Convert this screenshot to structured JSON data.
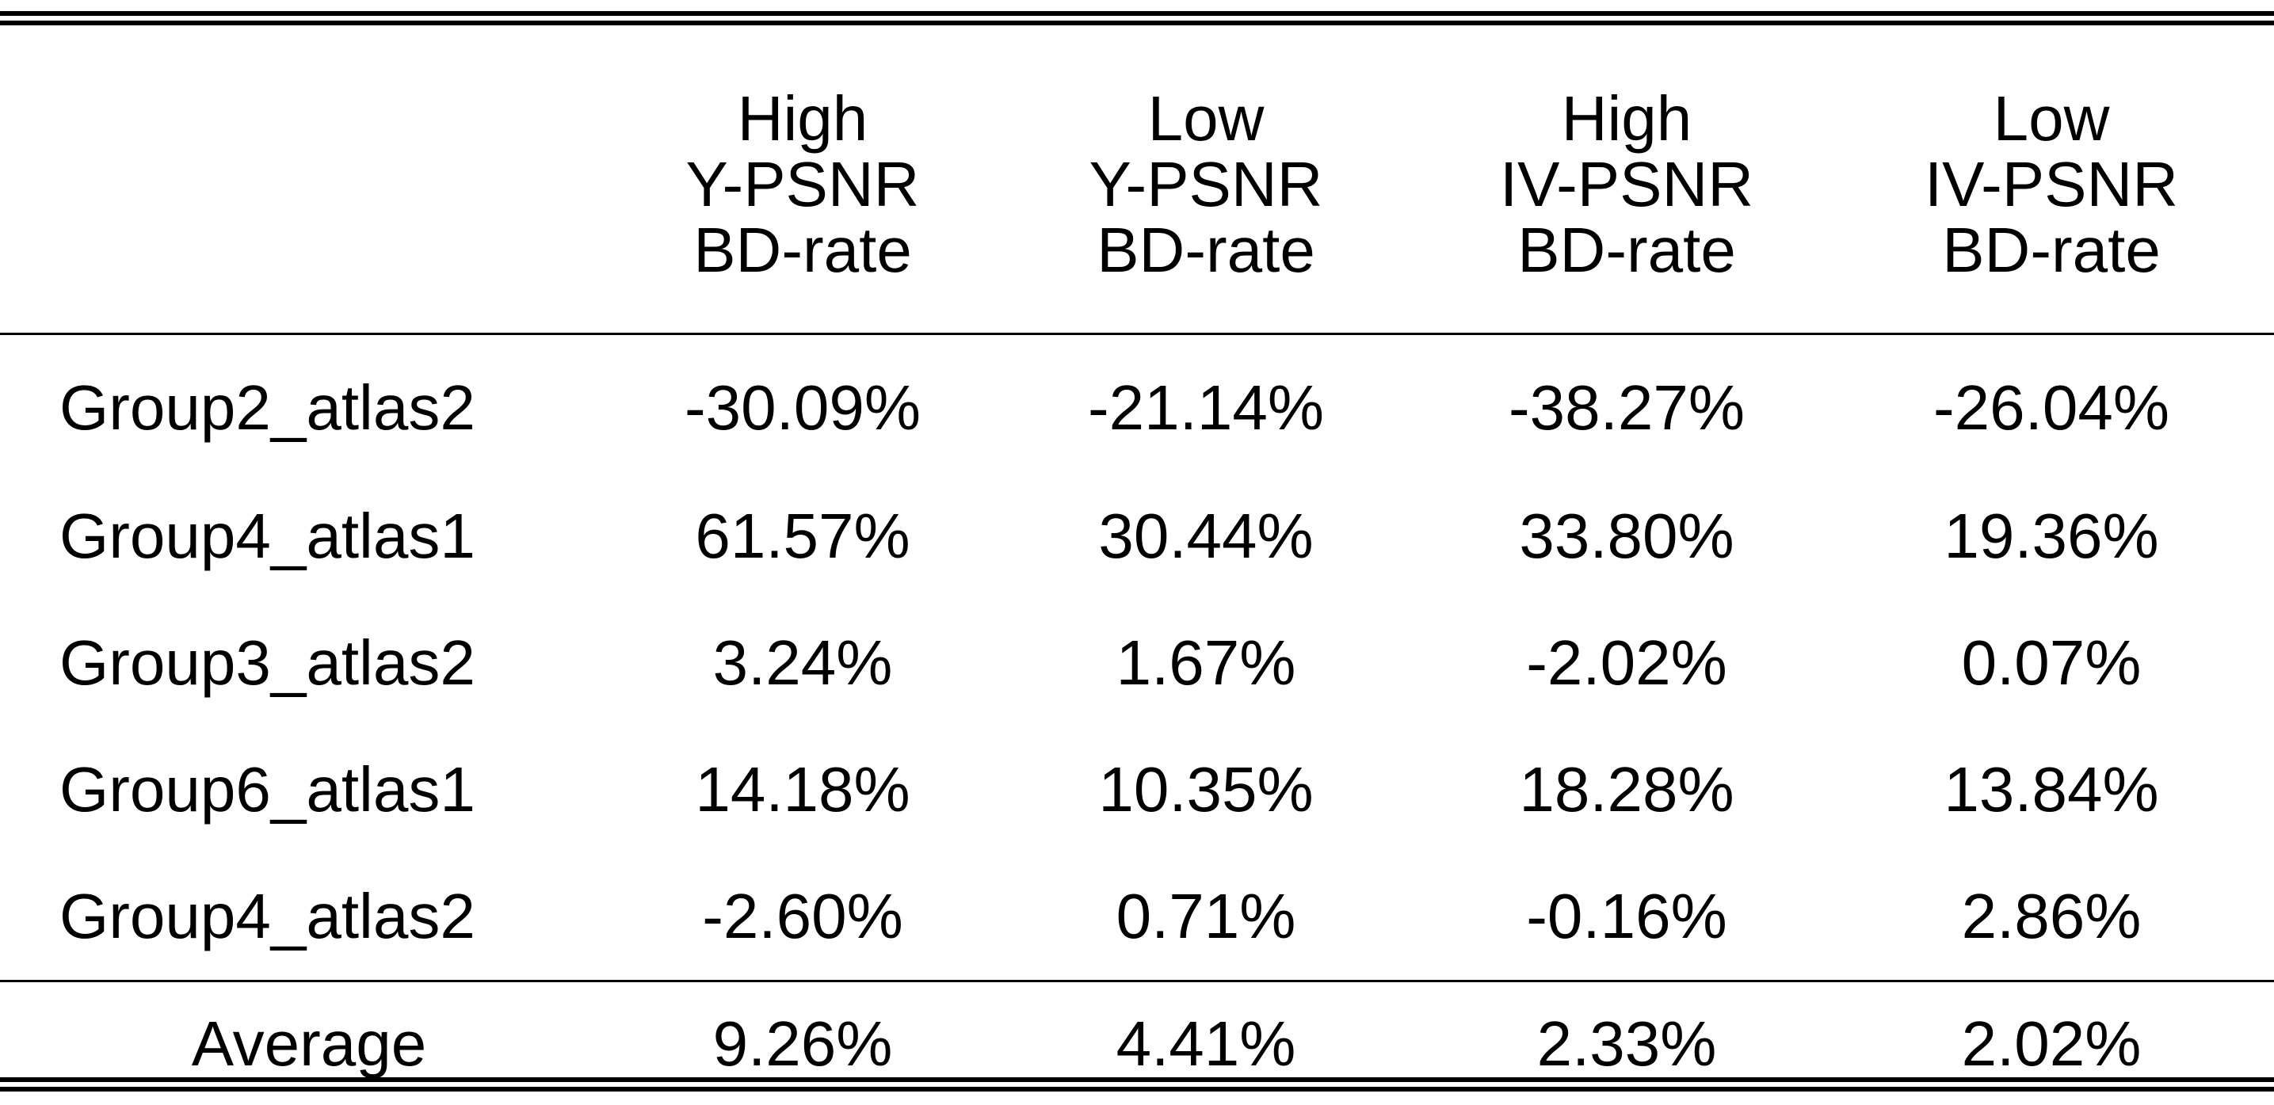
{
  "table": {
    "header": {
      "corner": "",
      "columns": [
        {
          "lines": [
            "High",
            "Y-PSNR",
            "BD-rate"
          ]
        },
        {
          "lines": [
            "Low",
            "Y-PSNR",
            "BD-rate"
          ]
        },
        {
          "lines": [
            "High",
            "IV-PSNR",
            "BD-rate"
          ]
        },
        {
          "lines": [
            "Low",
            "IV-PSNR",
            "BD-rate"
          ]
        }
      ]
    },
    "rows": [
      {
        "label": "Group2_atlas2",
        "values": [
          "-30.09%",
          "-21.14%",
          "-38.27%",
          "-26.04%"
        ]
      },
      {
        "label": "Group4_atlas1",
        "values": [
          "61.57%",
          "30.44%",
          "33.80%",
          "19.36%"
        ]
      },
      {
        "label": "Group3_atlas2",
        "values": [
          "3.24%",
          "1.67%",
          "-2.02%",
          "0.07%"
        ]
      },
      {
        "label": "Group6_atlas1",
        "values": [
          "14.18%",
          "10.35%",
          "18.28%",
          "13.84%"
        ]
      },
      {
        "label": "Group4_atlas2",
        "values": [
          "-2.60%",
          "0.71%",
          "-0.16%",
          "2.86%"
        ]
      }
    ],
    "footer": {
      "label": "Average",
      "values": [
        "9.26%",
        "4.41%",
        "2.33%",
        "2.02%"
      ]
    }
  }
}
